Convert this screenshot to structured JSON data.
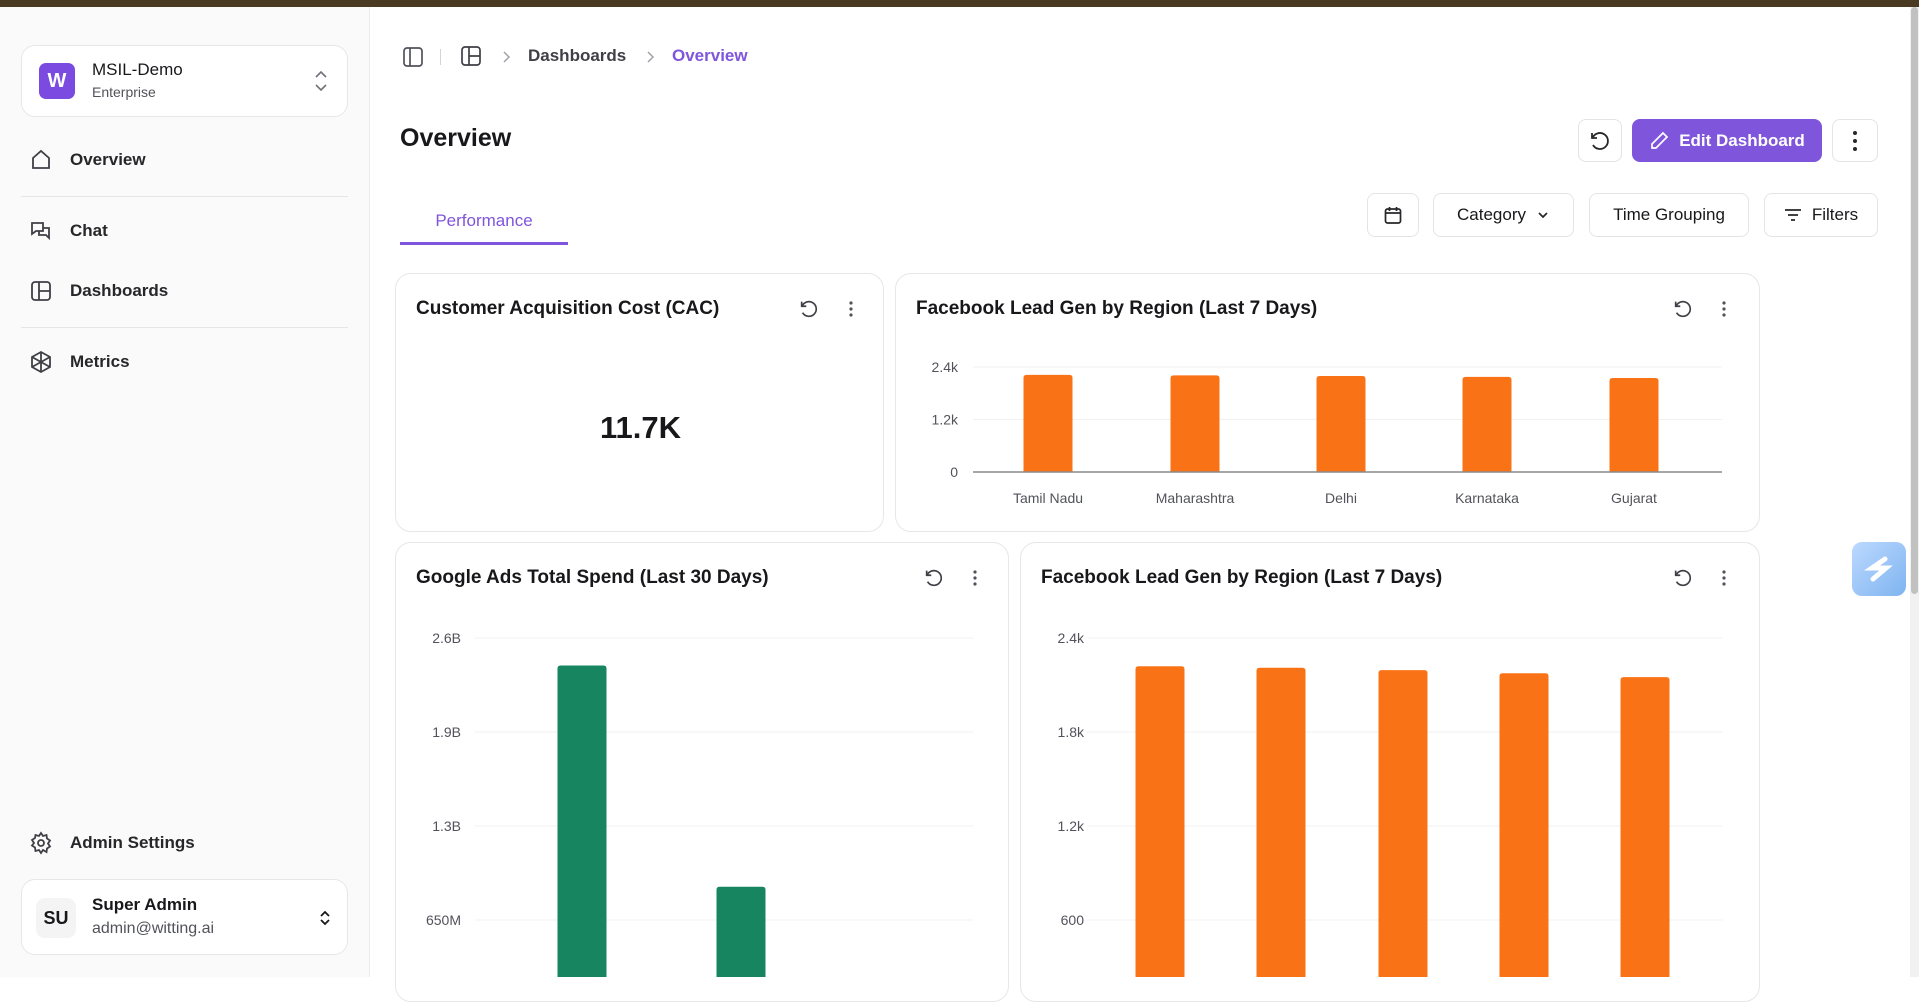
{
  "org": {
    "name": "MSIL-Demo",
    "plan": "Enterprise",
    "logo_letter": "W"
  },
  "nav": [
    {
      "label": "Overview",
      "icon": "home-icon"
    },
    {
      "label": "Chat",
      "icon": "chat-icon"
    },
    {
      "label": "Dashboards",
      "icon": "dashboard-icon"
    },
    {
      "label": "Metrics",
      "icon": "metrics-icon"
    }
  ],
  "admin_settings": "Admin Settings",
  "user": {
    "initials": "SU",
    "name": "Super Admin",
    "email": "admin@witting.ai"
  },
  "breadcrumb": [
    "Dashboards",
    "Overview"
  ],
  "page_title": "Overview",
  "header": {
    "edit_label": "Edit Dashboard"
  },
  "tabs": [
    {
      "label": "Performance",
      "active": true
    }
  ],
  "filters": {
    "category": "Category",
    "time_grouping": "Time Grouping",
    "filters": "Filters"
  },
  "colors": {
    "accent": "#7f55dc",
    "orange": "#f97316",
    "green": "#178560"
  },
  "cards": {
    "cac": {
      "title": "Customer Acquisition Cost (CAC)",
      "value": "11.7K"
    },
    "fb_top": {
      "title": "Facebook Lead Gen by Region (Last 7 Days)"
    },
    "google": {
      "title": "Google Ads Total Spend (Last 30 Days)"
    },
    "fb_bottom": {
      "title": "Facebook Lead Gen by Region (Last 7 Days)"
    }
  },
  "chart_data": [
    {
      "type": "bar",
      "title": "Facebook Lead Gen by Region (Last 7 Days)",
      "categories": [
        "Tamil Nadu",
        "Maharashtra",
        "Delhi",
        "Karnataka",
        "Gujarat"
      ],
      "values": [
        2220,
        2210,
        2195,
        2175,
        2150
      ],
      "yticks": [
        0,
        1200,
        2400
      ],
      "ytick_labels": [
        "0",
        "1.2k",
        "2.4k"
      ],
      "ylim": [
        0,
        2400
      ],
      "grid": true,
      "color": "#f97316"
    },
    {
      "type": "bar",
      "title": "Google Ads Total Spend (Last 30 Days)",
      "values": [
        2410000000,
        880000000
      ],
      "yticks": [
        650000000,
        1300000000,
        1950000000,
        2600000000
      ],
      "ytick_labels": [
        "650M",
        "1.3B",
        "1.9B",
        "2.6B"
      ],
      "ylim": [
        0,
        2600000000
      ],
      "grid": true,
      "color": "#178560"
    },
    {
      "type": "bar",
      "title": "Facebook Lead Gen by Region (Last 7 Days)",
      "values": [
        2220,
        2210,
        2195,
        2175,
        2150
      ],
      "yticks": [
        600,
        1200,
        1800,
        2400
      ],
      "ytick_labels": [
        "600",
        "1.2k",
        "1.8k",
        "2.4k"
      ],
      "ylim": [
        0,
        2400
      ],
      "grid": true,
      "color": "#f97316"
    }
  ]
}
